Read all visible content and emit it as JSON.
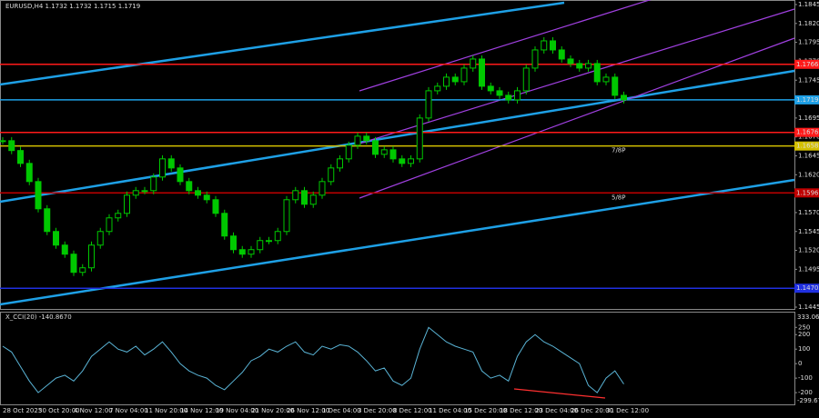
{
  "chart_data": [
    {
      "type": "candlestick",
      "title": "EURUSD,H4  1.1732 1.1732 1.1715 1.1719",
      "color": "#00c800",
      "categories": [
        "28 Oct 2025",
        "30 Oct 20:00",
        "4 Nov 12:00",
        "7 Nov 04:00",
        "11 Nov 20:00",
        "14 Nov 12:00",
        "19 Nov 04:00",
        "21 Nov 20:00",
        "26 Nov 12:00",
        "1 Dec 04:00",
        "3 Dec 20:00",
        "8 Dec 12:00",
        "11 Dec 04:00",
        "15 Dec 20:00",
        "18 Dec 12:00",
        "23 Dec 04:00",
        "26 Dec 20:00",
        "31 Dec 12:00"
      ],
      "closes": [
        1.1665,
        1.1652,
        1.1635,
        1.1611,
        1.1575,
        1.1545,
        1.1527,
        1.1515,
        1.1491,
        1.1497,
        1.1527,
        1.1545,
        1.1563,
        1.1569,
        1.1593,
        1.1599,
        1.1599,
        1.1617,
        1.1641,
        1.1629,
        1.1611,
        1.1599,
        1.1593,
        1.1587,
        1.1569,
        1.1539,
        1.1521,
        1.1515,
        1.1521,
        1.1533,
        1.1533,
        1.1545,
        1.1587,
        1.1599,
        1.1581,
        1.1593,
        1.1611,
        1.1629,
        1.1641,
        1.1659,
        1.1671,
        1.1665,
        1.1647,
        1.1653,
        1.1641,
        1.1635,
        1.1641,
        1.1695,
        1.1731,
        1.1737,
        1.1749,
        1.1743,
        1.1761,
        1.1773,
        1.1737,
        1.1731,
        1.1725,
        1.1719,
        1.1731,
        1.1761,
        1.1785,
        1.1797,
        1.1785,
        1.1773,
        1.1767,
        1.1761,
        1.1767,
        1.1743,
        1.1749,
        1.1725,
        1.1719
      ],
      "ylim": [
        1.1445,
        1.1845
      ],
      "yticks": [
        1.1845,
        {
          "value": 1.182,
          "label": "1.1820"
        },
        1.1795,
        {
          "value": 1.177,
          "label": "1.1770"
        },
        1.1745,
        1.1695,
        {
          "value": 1.167,
          "label": "1.1670"
        },
        1.1645,
        {
          "value": 1.162,
          "label": "1.1620"
        },
        1.1595,
        {
          "value": 1.157,
          "label": "1.1570"
        },
        1.1545,
        {
          "value": 1.152,
          "label": "1.1520"
        },
        1.1495,
        {
          "value": 1.147,
          "label": "1.1470"
        },
        1.1445
      ],
      "levels": [
        {
          "value": 1.1766,
          "color": "#ff1a1a"
        },
        {
          "value": 1.1719,
          "color": "#1ea0e6"
        },
        {
          "value": 1.1676,
          "color": "#ff1a1a"
        },
        {
          "value": 1.1658,
          "color": "#d4c000",
          "tag": "7/8P"
        },
        {
          "value": 1.1596,
          "color": "#c00000",
          "tag": "5/8P"
        },
        {
          "value": {
            "value": 1.147,
            "label": "1.1470"
          },
          "color": "#2030e0"
        }
      ]
    },
    {
      "type": "line",
      "title": "X_CCI(20) -140.8670",
      "color": "#5ab4d6",
      "values": [
        120,
        80,
        -20,
        -120,
        -200,
        -150,
        -100,
        -80,
        -120,
        -50,
        50,
        100,
        150,
        100,
        80,
        120,
        60,
        100,
        150,
        80,
        0,
        -50,
        -80,
        -100,
        -150,
        -180,
        -120,
        -60,
        20,
        50,
        100,
        80,
        120,
        150,
        80,
        60,
        120,
        100,
        130,
        120,
        80,
        20,
        -50,
        -30,
        -120,
        -150,
        -100,
        100,
        250,
        200,
        150,
        120,
        100,
        80,
        -50,
        -100,
        -80,
        -120,
        50,
        150,
        200,
        150,
        120,
        80,
        40,
        0,
        -150,
        -200,
        -100,
        -50,
        -140.867
      ],
      "ylim": [
        -299.678,
        333.061
      ],
      "yticks": [
        250,
        200,
        100,
        0,
        -100,
        -200
      ]
    }
  ]
}
